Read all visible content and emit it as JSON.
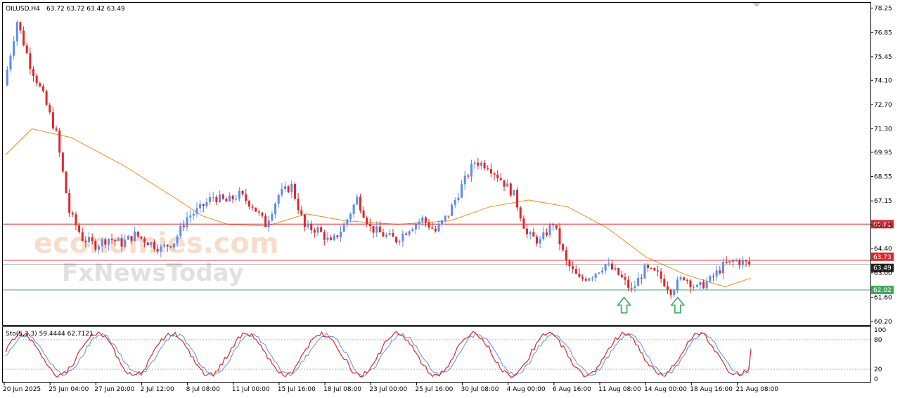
{
  "header": {
    "symbol": "OILUSD,H4",
    "ohlc": "63.72 63.72 63.42 63.49"
  },
  "indicator": {
    "label": "Sto(5,3,3) 59.4444 62.7121",
    "ticks": [
      "100",
      "80",
      "20",
      "0"
    ]
  },
  "watermark": {
    "line1": "economies.com",
    "line2": "FxNewsToday"
  },
  "colors": {
    "bull": "#5b8def",
    "bear": "#e0262b",
    "ma": "#f08a1c",
    "resistance": "#e0262b",
    "support": "#3daa5c",
    "arrow": "#3daa5c",
    "stoch_main": "#e0262b",
    "stoch_signal": "#5b8def"
  },
  "chart_data": {
    "type": "candlestick",
    "instrument": "OILUSD",
    "timeframe": "H4",
    "y_ticks": [
      "78.25",
      "76.85",
      "75.45",
      "74.10",
      "72.70",
      "71.30",
      "69.95",
      "68.55",
      "67.15",
      "65.75",
      "64.40",
      "63.00",
      "61.60",
      "60.20"
    ],
    "ylim": [
      60.0,
      78.6
    ],
    "x_ticks": [
      "20 Jun 2025",
      "25 Jun 04:00",
      "27 Jun 20:00",
      "2 Jul 12:00",
      "8 Jul 08:00",
      "11 Jul 00:00",
      "15 Jul 16:00",
      "18 Jul 08:00",
      "23 Jul 00:00",
      "25 Jul 16:00",
      "30 Jul 08:00",
      "4 Aug 00:00",
      "6 Aug 16:00",
      "11 Aug 08:00",
      "14 Aug 00:00",
      "18 Aug 16:00",
      "21 Aug 08:00"
    ],
    "price_levels": [
      {
        "label": "65.81",
        "value": 65.81,
        "color": "#e0262b"
      },
      {
        "label": "63.73",
        "value": 63.73,
        "color": "#e0262b"
      },
      {
        "label": "63.49",
        "value": 63.49,
        "color": "#222222"
      },
      {
        "label": "62.02",
        "value": 62.02,
        "color": "#3daa5c"
      }
    ],
    "close_path": [
      73.8,
      77.5,
      75.0,
      73.2,
      71.0,
      66.5,
      65.0,
      64.6,
      65.0,
      64.7,
      65.2,
      64.8,
      64.4,
      64.8,
      66.2,
      66.7,
      67.4,
      67.1,
      67.5,
      66.9,
      65.8,
      67.5,
      68.0,
      65.6,
      65.5,
      64.7,
      65.7,
      67.3,
      65.6,
      65.2,
      64.9,
      65.6,
      66.1,
      65.4,
      66.4,
      68.0,
      69.4,
      69.2,
      68.4,
      67.5,
      65.2,
      64.8,
      65.9,
      63.6,
      62.6,
      62.9,
      63.5,
      62.9,
      62.0,
      63.2,
      62.9,
      62.0,
      62.8,
      62.1,
      62.6,
      63.4,
      63.7,
      63.5
    ],
    "moving_average": [
      {
        "x": 0,
        "y": 69.8
      },
      {
        "x": 2,
        "y": 71.3
      },
      {
        "x": 5,
        "y": 70.8
      },
      {
        "x": 9,
        "y": 69.2
      },
      {
        "x": 13,
        "y": 67.3
      },
      {
        "x": 15,
        "y": 66.3
      },
      {
        "x": 17,
        "y": 65.8
      },
      {
        "x": 20,
        "y": 65.7
      },
      {
        "x": 23,
        "y": 66.4
      },
      {
        "x": 26,
        "y": 66.0
      },
      {
        "x": 30,
        "y": 65.8
      },
      {
        "x": 34,
        "y": 66.0
      },
      {
        "x": 37,
        "y": 66.8
      },
      {
        "x": 40,
        "y": 67.2
      },
      {
        "x": 43,
        "y": 66.8
      },
      {
        "x": 46,
        "y": 65.6
      },
      {
        "x": 49,
        "y": 63.9
      },
      {
        "x": 52,
        "y": 62.9
      },
      {
        "x": 55,
        "y": 62.2
      },
      {
        "x": 57,
        "y": 62.7
      }
    ],
    "arrows": [
      {
        "x": 47.3,
        "y": 60.7
      },
      {
        "x": 51.4,
        "y": 60.7
      }
    ],
    "stochastic": {
      "name": "Sto(5,3,3)",
      "main": 59.4444,
      "signal": 62.7121,
      "levels": [
        80,
        20
      ],
      "ylim": [
        0,
        100
      ]
    }
  }
}
